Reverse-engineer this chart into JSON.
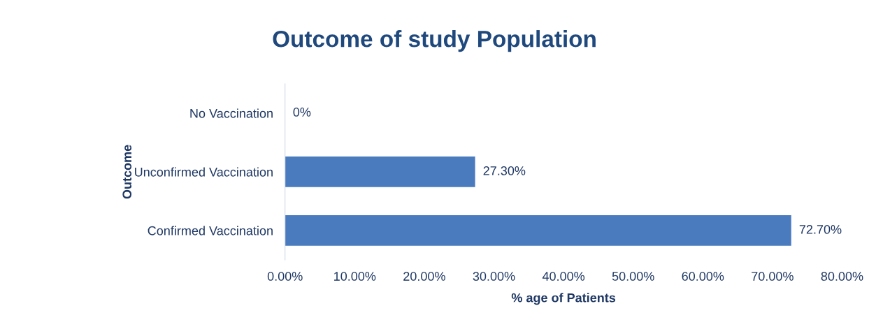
{
  "chart_data": {
    "type": "bar",
    "orientation": "horizontal",
    "title": "Outcome of study Population",
    "xlabel": "% age of Patients",
    "ylabel": "Outcome",
    "categories": [
      "No Vaccination",
      "Unconfirmed Vaccination",
      "Confirmed Vaccination"
    ],
    "values": [
      0,
      27.3,
      72.7
    ],
    "value_labels": [
      "0%",
      "27.30%",
      "72.70%"
    ],
    "color": "#4a7bbf",
    "xlim": [
      0,
      80
    ],
    "xticks": [
      {
        "value": 0,
        "label": "0.00%"
      },
      {
        "value": 10,
        "label": "10.00%"
      },
      {
        "value": 20,
        "label": "20.00%"
      },
      {
        "value": 30,
        "label": "30.00%"
      },
      {
        "value": 40,
        "label": "40.00%"
      },
      {
        "value": 50,
        "label": "50.00%"
      },
      {
        "value": 60,
        "label": "60.00%"
      },
      {
        "value": 70,
        "label": "70.00%"
      },
      {
        "value": 80,
        "label": "80.00%"
      }
    ],
    "grid": false,
    "legend": false
  }
}
